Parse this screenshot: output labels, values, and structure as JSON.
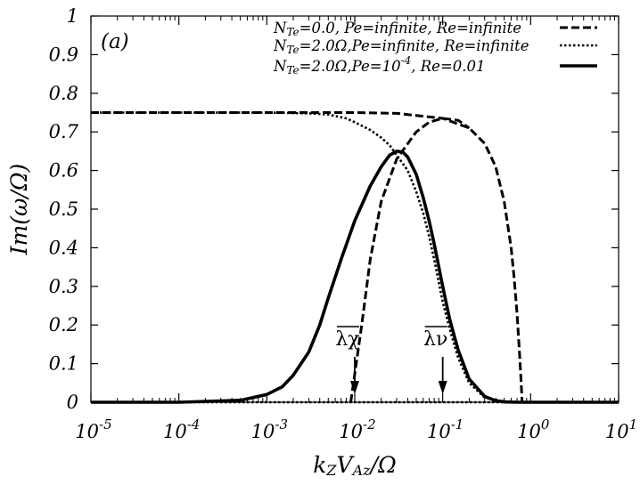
{
  "chart_data": {
    "type": "line",
    "panel_label": "(a)",
    "xlabel": "kzVᴀz/Ω",
    "xlabel_parts": {
      "k": "k",
      "ksub": "Z",
      "v": "V",
      "vsub": "Az",
      "tail": "/Ω"
    },
    "ylabel": "Im(ω/Ω)",
    "x_scale": "log",
    "xlim": [
      1e-05,
      10
    ],
    "ylim": [
      0,
      1
    ],
    "x_ticks": [
      {
        "mant": "10",
        "exp": "-5"
      },
      {
        "mant": "10",
        "exp": "-4"
      },
      {
        "mant": "10",
        "exp": "-3"
      },
      {
        "mant": "10",
        "exp": "-2"
      },
      {
        "mant": "10",
        "exp": "-1"
      },
      {
        "mant": "10",
        "exp": "0"
      },
      {
        "mant": "10",
        "exp": "1"
      }
    ],
    "y_ticks": [
      "0",
      "0.1",
      "0.2",
      "0.3",
      "0.4",
      "0.5",
      "0.6",
      "0.7",
      "0.8",
      "0.9",
      "1"
    ],
    "grid": false,
    "legend_position": "top-right",
    "legend": [
      {
        "n": "N",
        "nsub": "Te",
        "text": "=0.0,    Pe=infinite, Re=infinite",
        "style": "dashed"
      },
      {
        "n": "N",
        "nsub": "Te",
        "text": "=2.0Ω,Pe=infinite, Re=infinite",
        "style": "dotted"
      },
      {
        "n": "N",
        "nsub": "Te",
        "text": "=2.0Ω,Pe=10",
        "sup": "-4",
        "tail": ",      Re=0.01",
        "style": "solid"
      }
    ],
    "annotations": [
      {
        "symbol": "λ",
        "sub": "χ",
        "x": 0.01
      },
      {
        "symbol": "λ",
        "sub": "ν",
        "x": 0.1
      }
    ],
    "series": [
      {
        "style": "dashed",
        "curves": [
          {
            "x": [
              1e-05,
              0.0001,
              0.001,
              0.01,
              0.03,
              0.1,
              0.2,
              0.3,
              0.4,
              0.5,
              0.6,
              0.65,
              0.7,
              0.75,
              0.78,
              0.8,
              0.82,
              1,
              10
            ],
            "y": [
              0.75,
              0.75,
              0.75,
              0.75,
              0.748,
              0.735,
              0.71,
              0.67,
              0.61,
              0.52,
              0.4,
              0.32,
              0.23,
              0.12,
              0.05,
              0.0,
              0.0,
              0.0,
              0.0
            ]
          },
          {
            "x": [
              0.009,
              0.012,
              0.015,
              0.02,
              0.03,
              0.05,
              0.07,
              0.1,
              0.15,
              0.2
            ],
            "y": [
              0.0,
              0.2,
              0.37,
              0.52,
              0.63,
              0.7,
              0.725,
              0.735,
              0.73,
              0.71
            ]
          }
        ]
      },
      {
        "style": "dotted",
        "curves": [
          {
            "x": [
              1e-05,
              0.0001,
              0.001,
              0.003,
              0.005,
              0.008,
              0.01,
              0.015,
              0.02,
              0.025,
              0.03,
              0.04,
              0.05,
              0.06,
              0.07,
              0.08,
              0.1,
              0.12,
              0.15,
              0.2,
              0.3,
              0.5,
              0.8
            ],
            "y": [
              0.75,
              0.75,
              0.75,
              0.748,
              0.745,
              0.735,
              0.725,
              0.705,
              0.685,
              0.665,
              0.64,
              0.6,
              0.545,
              0.49,
              0.43,
              0.37,
              0.26,
              0.19,
              0.115,
              0.05,
              0.012,
              0.002,
              0.0
            ]
          },
          {
            "x": [
              1e-05,
              10
            ],
            "y": [
              0.0,
              0.0
            ]
          }
        ]
      },
      {
        "style": "solid",
        "curves": [
          {
            "x": [
              1e-05,
              0.0001,
              0.0005,
              0.001,
              0.0015,
              0.002,
              0.003,
              0.004,
              0.005,
              0.007,
              0.01,
              0.015,
              0.02,
              0.025,
              0.03,
              0.035,
              0.04,
              0.05,
              0.06,
              0.07,
              0.08,
              0.1,
              0.12,
              0.15,
              0.2,
              0.3,
              0.4,
              0.5,
              0.7,
              1,
              10
            ],
            "y": [
              0.0,
              0.0,
              0.005,
              0.02,
              0.04,
              0.07,
              0.13,
              0.2,
              0.27,
              0.37,
              0.47,
              0.56,
              0.61,
              0.64,
              0.65,
              0.648,
              0.635,
              0.59,
              0.53,
              0.47,
              0.41,
              0.3,
              0.215,
              0.135,
              0.06,
              0.015,
              0.004,
              0.001,
              0.0,
              0.0,
              0.0
            ]
          }
        ]
      }
    ]
  }
}
